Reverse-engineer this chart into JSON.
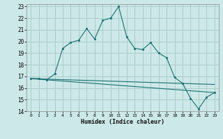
{
  "xlabel": "Humidex (Indice chaleur)",
  "background_color": "#cce8e8",
  "grid_color": "#aacccc",
  "line_color": "#1a7070",
  "xlim": [
    -0.5,
    23.5
  ],
  "ylim": [
    14,
    23.2
  ],
  "xticks": [
    0,
    1,
    2,
    3,
    4,
    5,
    6,
    7,
    8,
    9,
    10,
    11,
    12,
    13,
    14,
    15,
    16,
    17,
    18,
    19,
    20,
    21,
    22,
    23
  ],
  "yticks": [
    14,
    15,
    16,
    17,
    18,
    19,
    20,
    21,
    22,
    23
  ],
  "main_x": [
    0,
    1,
    2,
    3,
    4,
    5,
    6,
    7,
    8,
    9,
    10,
    11,
    12,
    13,
    14,
    15,
    16,
    17,
    18,
    19,
    20,
    21,
    22,
    23
  ],
  "main_y": [
    16.8,
    16.8,
    16.7,
    17.2,
    19.4,
    19.9,
    20.1,
    21.1,
    20.2,
    21.8,
    22.0,
    23.0,
    20.4,
    19.4,
    19.3,
    19.9,
    19.0,
    18.6,
    16.9,
    16.4,
    15.1,
    14.2,
    15.2,
    15.6
  ],
  "line2_x": [
    0,
    23
  ],
  "line2_y": [
    16.8,
    16.3
  ],
  "line3_x": [
    0,
    23
  ],
  "line3_y": [
    16.8,
    15.6
  ]
}
